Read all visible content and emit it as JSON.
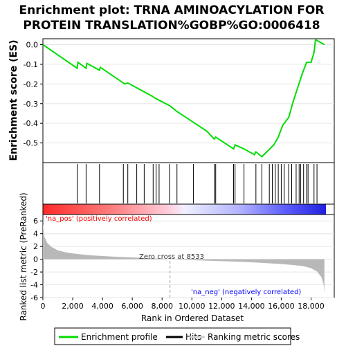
{
  "title_line1": "Enrichment plot: TRNA AMINOACYLATION FOR",
  "title_line2": "PROTEIN TRANSLATION%GOBP%GO:0006418",
  "colors": {
    "es_line": "#00dd00",
    "hits": "#000000",
    "pos_label": "#ff0000",
    "neg_label": "#0000ff",
    "metric_fill": "#b8b8b8"
  },
  "chart_data": [
    {
      "type": "line",
      "name": "enrichment-profile",
      "ylabel": "Enrichment score (ES)",
      "xlim": [
        0,
        19000
      ],
      "ylim": [
        -0.6,
        0.03
      ],
      "yticks": [
        0.0,
        -0.1,
        -0.2,
        -0.3,
        -0.4,
        -0.5
      ],
      "ytick_labels": [
        "0.0",
        "-0.1",
        "-0.2",
        "-0.3",
        "-0.4",
        "-0.5"
      ],
      "points": [
        [
          0,
          0.0
        ],
        [
          2300,
          -0.12
        ],
        [
          2350,
          -0.09
        ],
        [
          2900,
          -0.12
        ],
        [
          2950,
          -0.095
        ],
        [
          3800,
          -0.13
        ],
        [
          3850,
          -0.115
        ],
        [
          5400,
          -0.195
        ],
        [
          5500,
          -0.2
        ],
        [
          5700,
          -0.195
        ],
        [
          6800,
          -0.24
        ],
        [
          7400,
          -0.265
        ],
        [
          7600,
          -0.275
        ],
        [
          8500,
          -0.31
        ],
        [
          9000,
          -0.34
        ],
        [
          10000,
          -0.39
        ],
        [
          11000,
          -0.44
        ],
        [
          11500,
          -0.48
        ],
        [
          11600,
          -0.47
        ],
        [
          12800,
          -0.53
        ],
        [
          12900,
          -0.51
        ],
        [
          13500,
          -0.53
        ],
        [
          14200,
          -0.56
        ],
        [
          14300,
          -0.545
        ],
        [
          14700,
          -0.57
        ],
        [
          15100,
          -0.54
        ],
        [
          15500,
          -0.51
        ],
        [
          15800,
          -0.47
        ],
        [
          16100,
          -0.41
        ],
        [
          16500,
          -0.37
        ],
        [
          16800,
          -0.29
        ],
        [
          17100,
          -0.22
        ],
        [
          17400,
          -0.15
        ],
        [
          17700,
          -0.09
        ],
        [
          18000,
          -0.09
        ],
        [
          18200,
          -0.04
        ],
        [
          18300,
          0.025
        ],
        [
          18900,
          0.0
        ]
      ]
    },
    {
      "type": "scatter",
      "name": "hits",
      "x": [
        2300,
        2900,
        3800,
        5400,
        5700,
        6300,
        6800,
        7400,
        7600,
        7800,
        8500,
        9000,
        10100,
        11500,
        11600,
        12800,
        12900,
        13500,
        14300,
        14700,
        15200,
        15400,
        15600,
        15800,
        16000,
        16200,
        16500,
        16700,
        17000,
        17200,
        17300,
        17500,
        17700,
        17800,
        18200,
        18400
      ]
    },
    {
      "type": "area",
      "name": "ranked-list-metric",
      "ylabel": "Ranked list metric (PreRanked)",
      "xlabel": "Rank in Ordered Dataset",
      "xlim": [
        0,
        19000
      ],
      "ylim": [
        -6,
        7
      ],
      "yticks": [
        6,
        4,
        2,
        0,
        -2,
        -4,
        -6
      ],
      "ytick_labels": [
        "6",
        "4",
        "2",
        "0",
        "-2",
        "-4",
        "-6"
      ],
      "xticks": [
        0,
        2000,
        4000,
        6000,
        8000,
        10000,
        12000,
        14000,
        16000,
        18000
      ],
      "xtick_labels": [
        "0",
        "2,000",
        "4,000",
        "6,000",
        "8,000",
        "10,000",
        "12,000",
        "14,000",
        "16,000",
        "18,000"
      ],
      "points": [
        [
          0,
          5.5
        ],
        [
          100,
          3.5
        ],
        [
          300,
          2.5
        ],
        [
          600,
          1.9
        ],
        [
          1000,
          1.4
        ],
        [
          1500,
          1.1
        ],
        [
          2000,
          0.9
        ],
        [
          3000,
          0.65
        ],
        [
          4000,
          0.5
        ],
        [
          5000,
          0.38
        ],
        [
          6000,
          0.28
        ],
        [
          7000,
          0.18
        ],
        [
          8000,
          0.08
        ],
        [
          8533,
          0.0
        ],
        [
          9000,
          -0.05
        ],
        [
          10000,
          -0.15
        ],
        [
          11000,
          -0.22
        ],
        [
          12000,
          -0.3
        ],
        [
          13000,
          -0.38
        ],
        [
          14000,
          -0.48
        ],
        [
          15000,
          -0.6
        ],
        [
          16000,
          -0.75
        ],
        [
          17000,
          -0.95
        ],
        [
          17500,
          -1.1
        ],
        [
          18000,
          -1.4
        ],
        [
          18400,
          -1.9
        ],
        [
          18700,
          -2.8
        ],
        [
          18850,
          -4.0
        ],
        [
          18900,
          -5.3
        ]
      ],
      "zero_cross": 8533,
      "annotations": {
        "zero_cross": "Zero cross at 8533",
        "na_pos": "'na_pos' (positively correlated)",
        "na_neg": "'na_neg' (negatively correlated)"
      }
    }
  ],
  "legend": {
    "items": [
      {
        "label": "Enrichment profile",
        "color": "#00dd00"
      },
      {
        "label": "Hits",
        "color": "#000000"
      },
      {
        "label": "Ranking metric scores",
        "color": "#d0d0d0"
      }
    ]
  }
}
